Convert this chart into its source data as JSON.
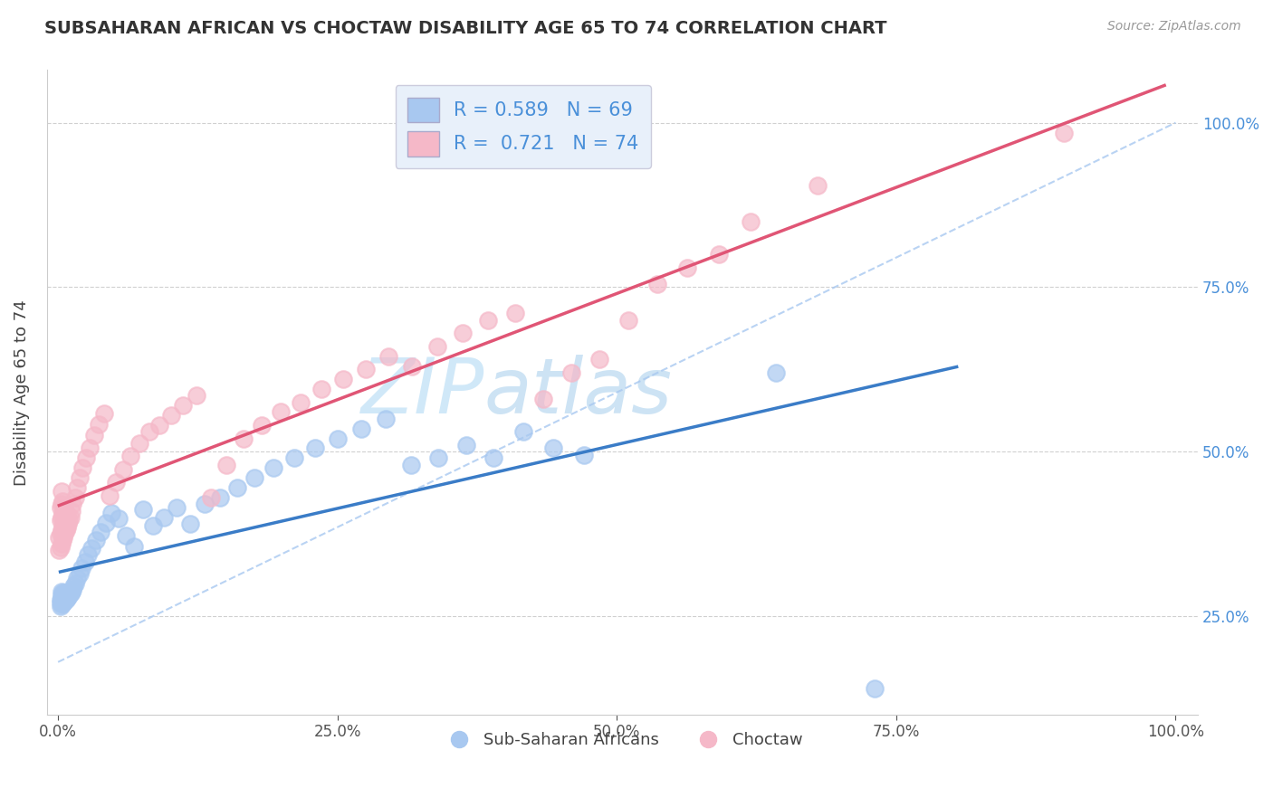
{
  "title": "SUBSAHARAN AFRICAN VS CHOCTAW DISABILITY AGE 65 TO 74 CORRELATION CHART",
  "source": "Source: ZipAtlas.com",
  "ylabel": "Disability Age 65 to 74",
  "blue_color": "#a8c8f0",
  "pink_color": "#f5b8c8",
  "blue_line_color": "#3a7cc7",
  "pink_line_color": "#e05575",
  "dashed_line_color": "#a8c8f0",
  "right_tick_color": "#4a90d9",
  "title_color": "#333333",
  "source_color": "#999999",
  "watermark_color": "#d0e8f8",
  "grid_color": "#d0d0d0",
  "legend_box_color": "#e8f0fa",
  "legend_text_color": "#4a90d9",
  "xtick_labels": [
    "0.0%",
    "",
    "25.0%",
    "",
    "50.0%",
    "",
    "75.0%",
    "",
    "100.0%"
  ],
  "xtick_vals": [
    0.0,
    0.125,
    0.25,
    0.375,
    0.5,
    0.625,
    0.75,
    0.875,
    1.0
  ],
  "ytick_labels": [
    "25.0%",
    "50.0%",
    "75.0%",
    "100.0%"
  ],
  "ytick_vals": [
    0.25,
    0.5,
    0.75,
    1.0
  ],
  "xlim": [
    -0.01,
    1.02
  ],
  "ylim": [
    0.1,
    1.08
  ],
  "blue_x": [
    0.002,
    0.002,
    0.002,
    0.003,
    0.003,
    0.003,
    0.003,
    0.003,
    0.004,
    0.004,
    0.004,
    0.004,
    0.005,
    0.005,
    0.005,
    0.005,
    0.006,
    0.006,
    0.006,
    0.007,
    0.007,
    0.007,
    0.008,
    0.008,
    0.009,
    0.009,
    0.01,
    0.011,
    0.012,
    0.013,
    0.014,
    0.015,
    0.017,
    0.019,
    0.021,
    0.024,
    0.027,
    0.03,
    0.034,
    0.038,
    0.043,
    0.048,
    0.054,
    0.061,
    0.068,
    0.076,
    0.085,
    0.095,
    0.106,
    0.118,
    0.131,
    0.145,
    0.16,
    0.176,
    0.193,
    0.211,
    0.23,
    0.25,
    0.271,
    0.293,
    0.316,
    0.34,
    0.365,
    0.39,
    0.416,
    0.443,
    0.471,
    0.642,
    0.731
  ],
  "blue_y": [
    0.265,
    0.27,
    0.275,
    0.268,
    0.272,
    0.277,
    0.282,
    0.287,
    0.269,
    0.274,
    0.279,
    0.284,
    0.271,
    0.276,
    0.281,
    0.286,
    0.273,
    0.278,
    0.283,
    0.275,
    0.28,
    0.285,
    0.277,
    0.282,
    0.279,
    0.284,
    0.281,
    0.284,
    0.287,
    0.29,
    0.295,
    0.3,
    0.307,
    0.315,
    0.323,
    0.333,
    0.343,
    0.353,
    0.365,
    0.378,
    0.392,
    0.406,
    0.398,
    0.372,
    0.356,
    0.412,
    0.388,
    0.4,
    0.415,
    0.39,
    0.42,
    0.43,
    0.445,
    0.46,
    0.475,
    0.49,
    0.505,
    0.52,
    0.535,
    0.55,
    0.48,
    0.49,
    0.51,
    0.49,
    0.53,
    0.505,
    0.495,
    0.62,
    0.14
  ],
  "pink_x": [
    0.001,
    0.001,
    0.002,
    0.002,
    0.002,
    0.002,
    0.003,
    0.003,
    0.003,
    0.003,
    0.003,
    0.004,
    0.004,
    0.004,
    0.004,
    0.005,
    0.005,
    0.005,
    0.006,
    0.006,
    0.006,
    0.007,
    0.007,
    0.008,
    0.008,
    0.009,
    0.01,
    0.011,
    0.012,
    0.013,
    0.015,
    0.017,
    0.019,
    0.022,
    0.025,
    0.028,
    0.032,
    0.036,
    0.041,
    0.046,
    0.052,
    0.058,
    0.065,
    0.073,
    0.082,
    0.091,
    0.101,
    0.112,
    0.124,
    0.137,
    0.151,
    0.166,
    0.182,
    0.199,
    0.217,
    0.236,
    0.255,
    0.275,
    0.296,
    0.317,
    0.339,
    0.362,
    0.385,
    0.409,
    0.434,
    0.459,
    0.484,
    0.51,
    0.536,
    0.563,
    0.591,
    0.62,
    0.68,
    0.9
  ],
  "pink_y": [
    0.35,
    0.37,
    0.355,
    0.375,
    0.395,
    0.415,
    0.36,
    0.38,
    0.4,
    0.42,
    0.44,
    0.365,
    0.385,
    0.405,
    0.425,
    0.37,
    0.39,
    0.41,
    0.375,
    0.395,
    0.415,
    0.38,
    0.4,
    0.385,
    0.405,
    0.39,
    0.395,
    0.4,
    0.41,
    0.42,
    0.43,
    0.445,
    0.46,
    0.475,
    0.49,
    0.505,
    0.525,
    0.542,
    0.558,
    0.433,
    0.453,
    0.473,
    0.493,
    0.513,
    0.53,
    0.54,
    0.555,
    0.57,
    0.585,
    0.43,
    0.48,
    0.52,
    0.54,
    0.56,
    0.575,
    0.595,
    0.61,
    0.625,
    0.645,
    0.63,
    0.66,
    0.68,
    0.7,
    0.71,
    0.58,
    0.62,
    0.64,
    0.7,
    0.755,
    0.78,
    0.8,
    0.85,
    0.905,
    0.985
  ]
}
